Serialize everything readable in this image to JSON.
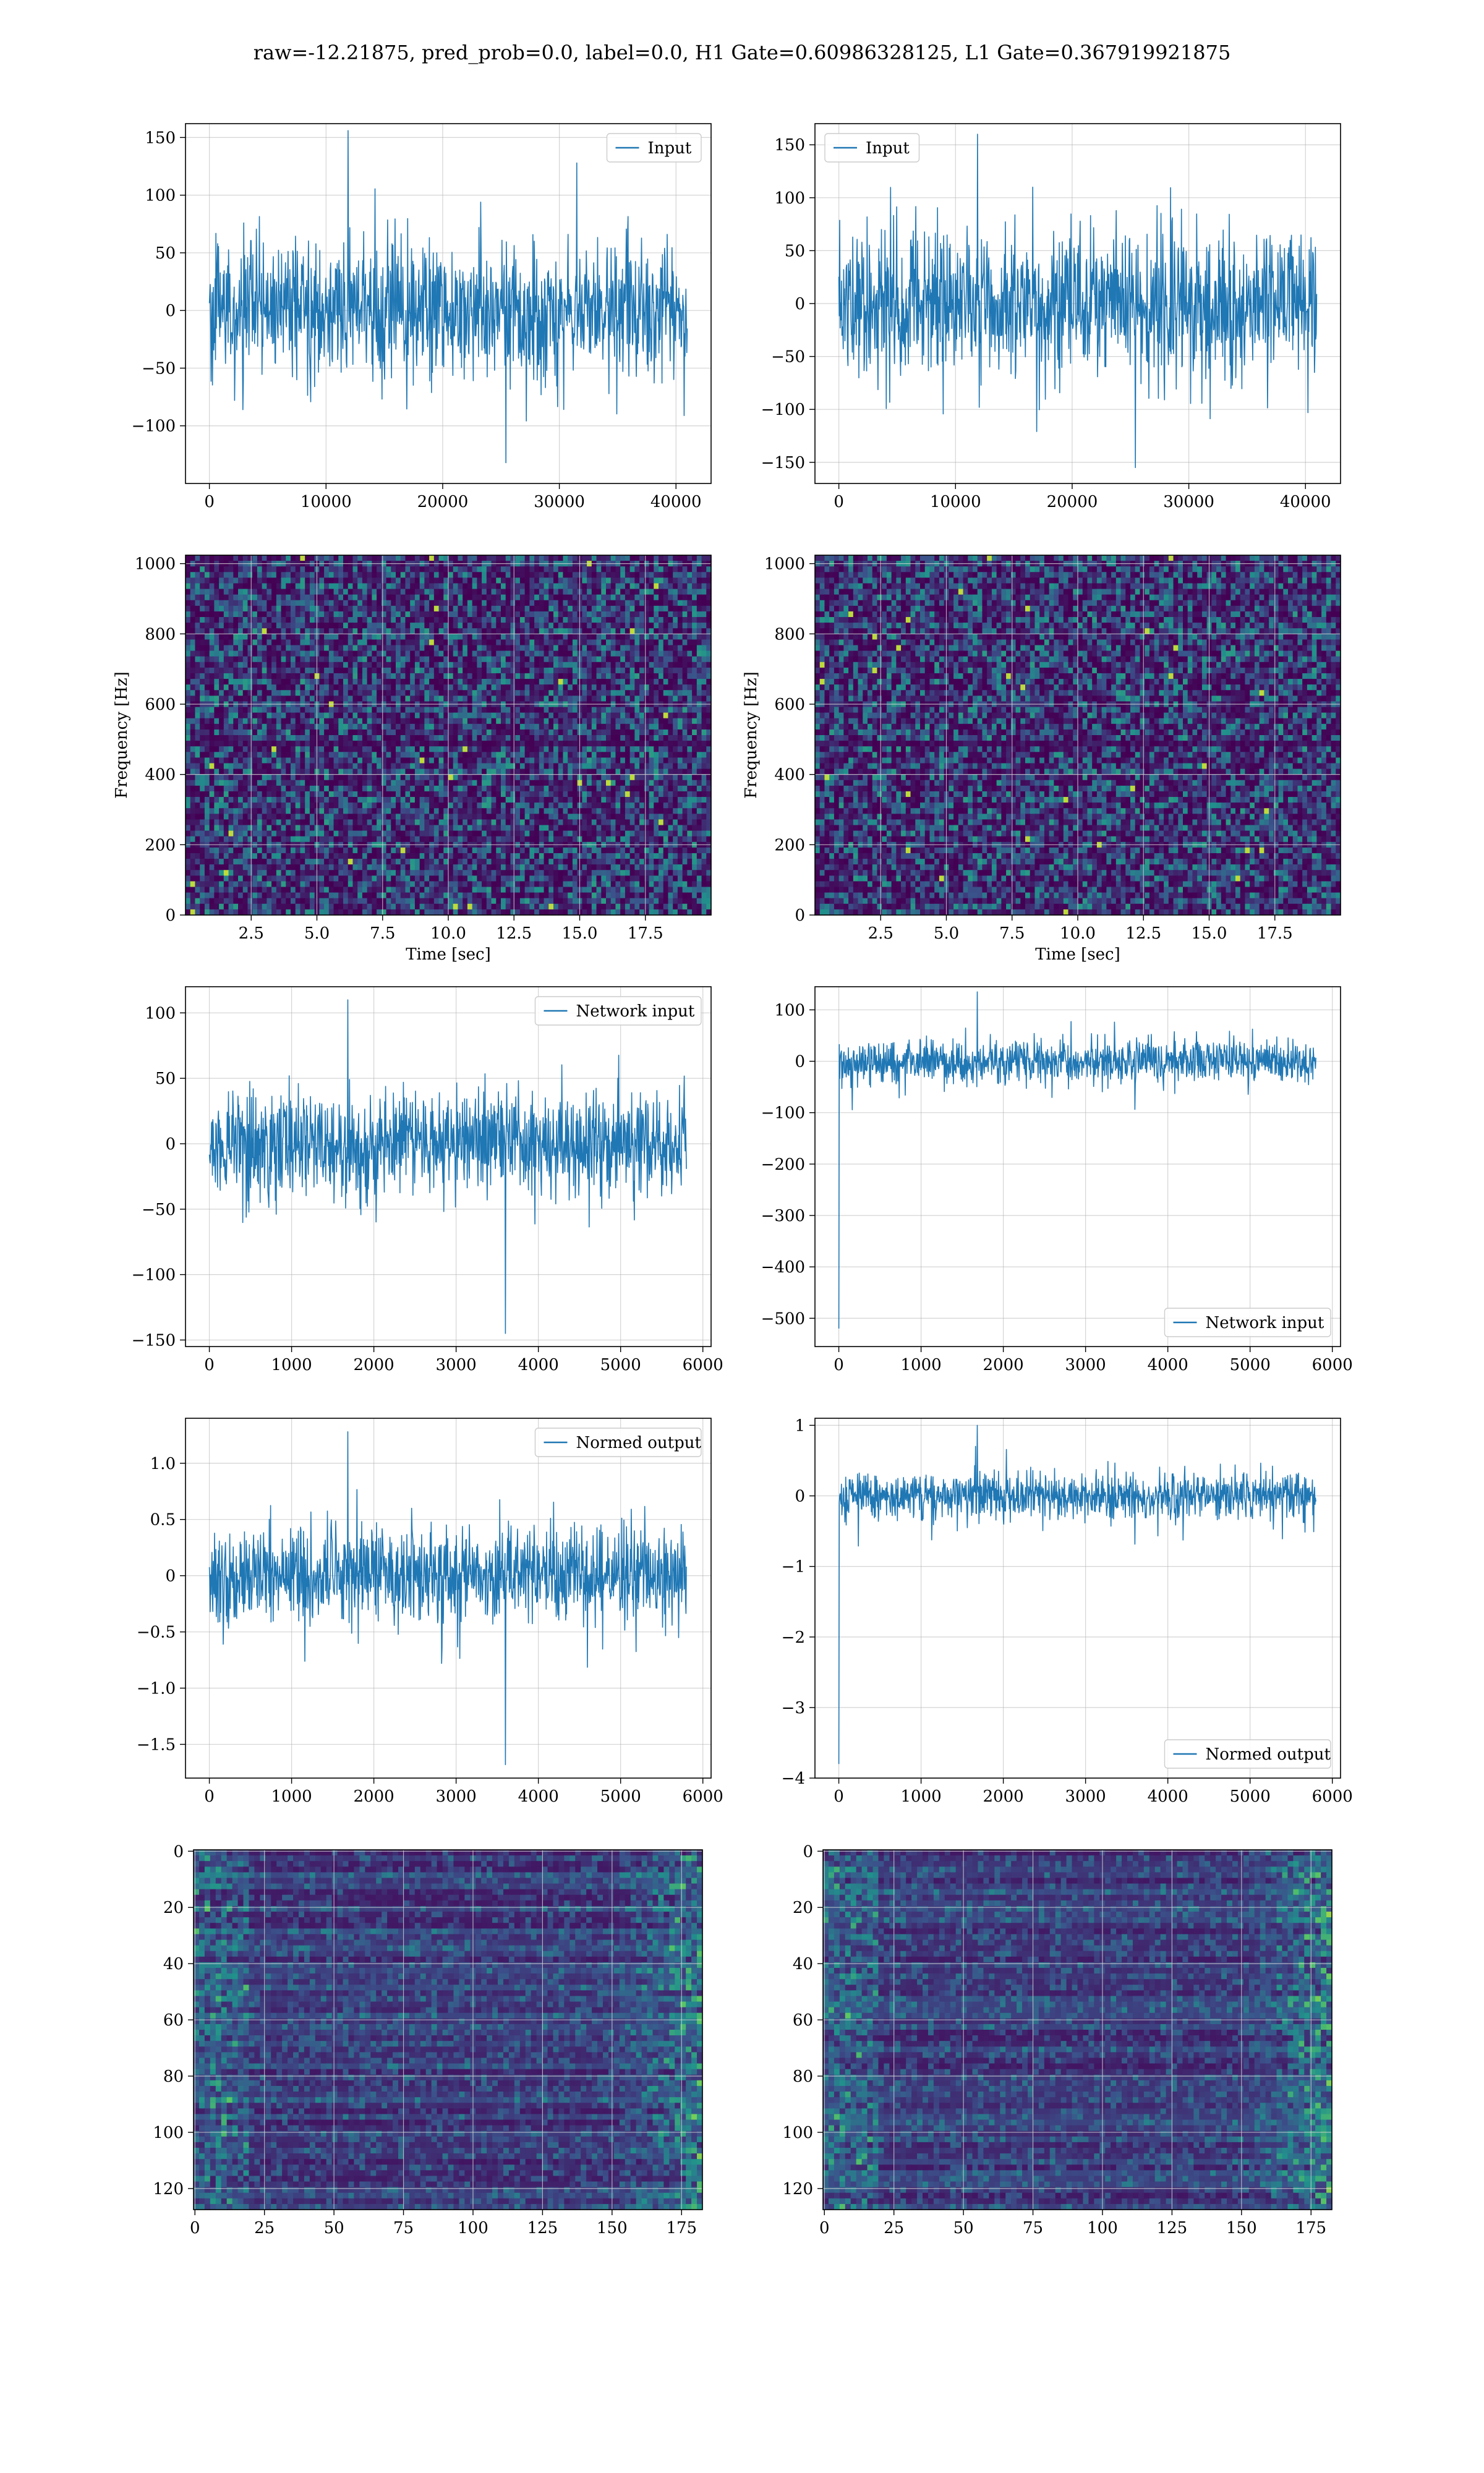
{
  "figure": {
    "suptitle": "raw=-12.21875, pred_prob=0.0, label=0.0, H1 Gate=0.60986328125, L1 Gate=0.367919921875",
    "series_color": "#1f77b4",
    "grid_color": "#b0b0b0"
  },
  "chart_data": [
    {
      "id": "p1",
      "type": "line",
      "row": 1,
      "col": 1,
      "title": "",
      "xlabel": "",
      "ylabel": "",
      "legend": [
        "Input"
      ],
      "legend_loc": "upper right",
      "xlim": [
        -2048,
        43008
      ],
      "ylim": [
        -150,
        162
      ],
      "xticks": [
        0,
        10000,
        20000,
        30000,
        40000
      ],
      "yticks": [
        -100,
        -50,
        0,
        50,
        100,
        150
      ],
      "grid": true,
      "series": [
        {
          "name": "Input",
          "n_samples": 40960,
          "x_range": [
            0,
            40960
          ],
          "typical_amplitude": 60,
          "max": 156,
          "min": -132
        }
      ]
    },
    {
      "id": "p2",
      "type": "line",
      "row": 1,
      "col": 2,
      "title": "",
      "xlabel": "",
      "ylabel": "",
      "legend": [
        "Input"
      ],
      "legend_loc": "upper left",
      "xlim": [
        -2048,
        43008
      ],
      "ylim": [
        -170,
        170
      ],
      "xticks": [
        0,
        10000,
        20000,
        30000,
        40000
      ],
      "yticks": [
        -150,
        -100,
        -50,
        0,
        50,
        100,
        150
      ],
      "grid": true,
      "series": [
        {
          "name": "Input",
          "n_samples": 40960,
          "x_range": [
            0,
            40960
          ],
          "typical_amplitude": 70,
          "max": 160,
          "min": -155
        }
      ]
    },
    {
      "id": "p3",
      "type": "heatmap",
      "row": 2,
      "col": 1,
      "title": "",
      "xlabel": "Time [sec]",
      "ylabel": "Frequency [Hz]",
      "xlim": [
        0,
        20
      ],
      "ylim": [
        0,
        1024
      ],
      "xticks": [
        2.5,
        5.0,
        7.5,
        10.0,
        12.5,
        15.0,
        17.5
      ],
      "yticks": [
        0,
        200,
        400,
        600,
        800,
        1000
      ],
      "grid": true,
      "colormap": "viridis",
      "description_values": {
        "dark_band_hz": [
          490,
          510
        ],
        "hot_spots_hz": [
          660,
          540,
          50
        ]
      }
    },
    {
      "id": "p4",
      "type": "heatmap",
      "row": 2,
      "col": 2,
      "title": "",
      "xlabel": "Time [sec]",
      "ylabel": "Frequency [Hz]",
      "xlim": [
        0,
        20
      ],
      "ylim": [
        0,
        1024
      ],
      "xticks": [
        2.5,
        5.0,
        7.5,
        10.0,
        12.5,
        15.0,
        17.5
      ],
      "yticks": [
        0,
        200,
        400,
        600,
        800,
        1000
      ],
      "grid": true,
      "colormap": "viridis",
      "description_values": {
        "dark_band_hz": [
          490,
          510
        ],
        "hot_spots_hz": [
          680,
          550,
          130
        ]
      }
    },
    {
      "id": "p5",
      "type": "line",
      "row": 3,
      "col": 1,
      "title": "",
      "xlabel": "",
      "ylabel": "",
      "legend": [
        "Network input"
      ],
      "legend_loc": "upper right",
      "xlim": [
        -290,
        6100
      ],
      "ylim": [
        -155,
        120
      ],
      "xticks": [
        0,
        1000,
        2000,
        3000,
        4000,
        5000,
        6000
      ],
      "yticks": [
        -150,
        -100,
        -50,
        0,
        50,
        100
      ],
      "grid": true,
      "series": [
        {
          "name": "Network input",
          "n_samples": 5800,
          "x_range": [
            0,
            5800
          ],
          "typical_amplitude": 40,
          "max": 110,
          "min": -145
        }
      ]
    },
    {
      "id": "p6",
      "type": "line",
      "row": 3,
      "col": 2,
      "title": "",
      "xlabel": "",
      "ylabel": "",
      "legend": [
        "Network input"
      ],
      "legend_loc": "lower right",
      "xlim": [
        -290,
        6100
      ],
      "ylim": [
        -555,
        145
      ],
      "xticks": [
        0,
        1000,
        2000,
        3000,
        4000,
        5000,
        6000
      ],
      "yticks": [
        -500,
        -400,
        -300,
        -200,
        -100,
        0,
        100
      ],
      "grid": true,
      "series": [
        {
          "name": "Network input",
          "n_samples": 5800,
          "x_range": [
            0,
            5800
          ],
          "typical_amplitude": 45,
          "max": 135,
          "min": -520
        }
      ]
    },
    {
      "id": "p7",
      "type": "line",
      "row": 4,
      "col": 1,
      "title": "",
      "xlabel": "",
      "ylabel": "",
      "legend": [
        "Normed output"
      ],
      "legend_loc": "upper right",
      "xlim": [
        -290,
        6100
      ],
      "ylim": [
        -1.8,
        1.4
      ],
      "xticks": [
        0,
        1000,
        2000,
        3000,
        4000,
        5000,
        6000
      ],
      "yticks": [
        -1.5,
        -1.0,
        -0.5,
        0.0,
        0.5,
        1.0
      ],
      "grid": true,
      "series": [
        {
          "name": "Normed output",
          "n_samples": 5800,
          "x_range": [
            0,
            5800
          ],
          "typical_amplitude": 0.45,
          "max": 1.28,
          "min": -1.68
        }
      ]
    },
    {
      "id": "p8",
      "type": "line",
      "row": 4,
      "col": 2,
      "title": "",
      "xlabel": "",
      "ylabel": "",
      "legend": [
        "Normed output"
      ],
      "legend_loc": "lower right",
      "xlim": [
        -290,
        6100
      ],
      "ylim": [
        -4.0,
        1.1
      ],
      "xticks": [
        0,
        1000,
        2000,
        3000,
        4000,
        5000,
        6000
      ],
      "yticks": [
        -4,
        -3,
        -2,
        -1,
        0,
        1
      ],
      "grid": true,
      "series": [
        {
          "name": "Normed output",
          "n_samples": 5800,
          "x_range": [
            0,
            5800
          ],
          "typical_amplitude": 0.35,
          "max": 1.0,
          "min": -3.8
        }
      ]
    },
    {
      "id": "p9",
      "type": "heatmap",
      "row": 5,
      "col": 1,
      "title": "",
      "xlabel": "",
      "ylabel": "",
      "xlim": [
        -0.5,
        182.5
      ],
      "ylim": [
        127.5,
        -0.5
      ],
      "xticks": [
        0,
        25,
        50,
        75,
        100,
        125,
        150,
        175
      ],
      "yticks": [
        0,
        20,
        40,
        60,
        80,
        100,
        120
      ],
      "grid": true,
      "colormap": "viridis",
      "shape": [
        128,
        183
      ]
    },
    {
      "id": "p10",
      "type": "heatmap",
      "row": 5,
      "col": 2,
      "title": "",
      "xlabel": "",
      "ylabel": "",
      "xlim": [
        -0.5,
        182.5
      ],
      "ylim": [
        127.5,
        -0.5
      ],
      "xticks": [
        0,
        25,
        50,
        75,
        100,
        125,
        150,
        175
      ],
      "yticks": [
        0,
        20,
        40,
        60,
        80,
        100,
        120
      ],
      "grid": true,
      "colormap": "viridis",
      "shape": [
        128,
        183
      ]
    }
  ]
}
